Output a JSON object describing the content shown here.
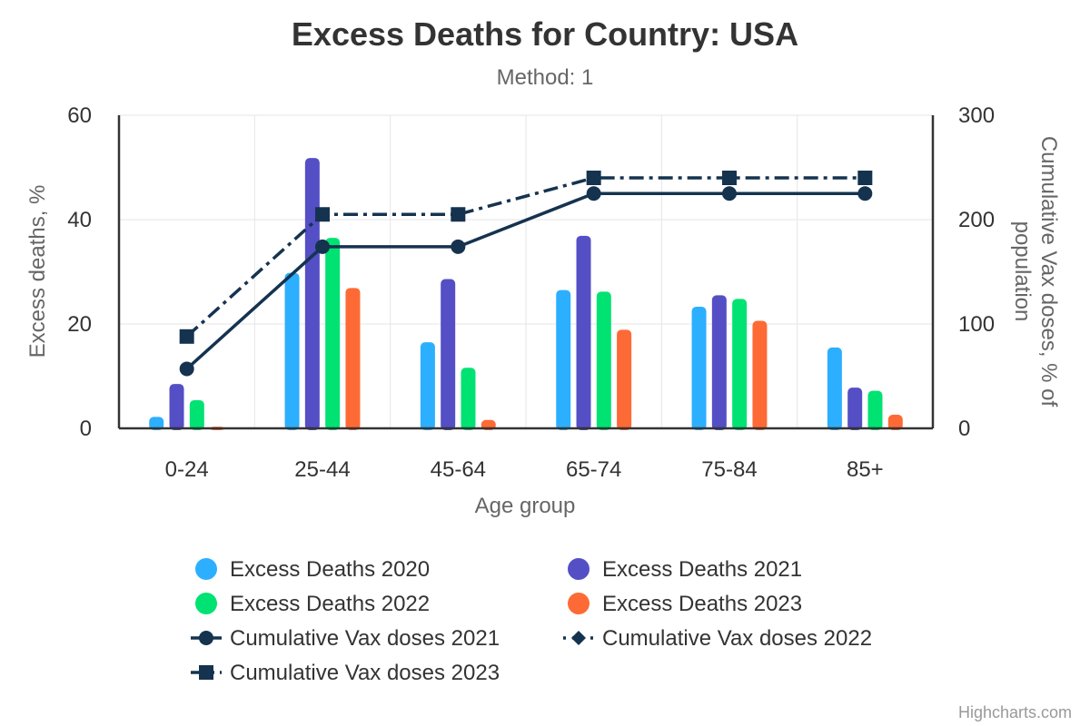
{
  "chart_data": {
    "type": "bar",
    "title": "Excess Deaths for Country: USA",
    "subtitle": "Method: 1",
    "xlabel": "Age group",
    "ylabel": "Excess deaths, %",
    "y2label_line1": "Cumulative Vax doses, % of",
    "y2label_line2": "population",
    "ylim": [
      0,
      60
    ],
    "y2lim": [
      0,
      300
    ],
    "yticks": [
      0,
      20,
      40,
      60
    ],
    "y2ticks": [
      0,
      100,
      200,
      300
    ],
    "categories": [
      "0-24",
      "25-44",
      "45-64",
      "65-74",
      "75-84",
      "85+"
    ],
    "bar_series": [
      {
        "name": "Excess Deaths 2020",
        "color": "#2caffe",
        "values": [
          2.2,
          29.8,
          16.5,
          26.5,
          23.3,
          15.5
        ]
      },
      {
        "name": "Excess Deaths 2021",
        "color": "#544fc5",
        "values": [
          8.5,
          51.8,
          28.6,
          36.9,
          25.5,
          7.8
        ]
      },
      {
        "name": "Excess Deaths 2022",
        "color": "#00e272",
        "values": [
          5.4,
          36.5,
          11.6,
          26.2,
          24.8,
          7.2
        ]
      },
      {
        "name": "Excess Deaths 2023",
        "color": "#fe6a35",
        "values": [
          0.3,
          26.9,
          1.6,
          18.9,
          20.6,
          2.6
        ]
      }
    ],
    "line_series": [
      {
        "name": "Cumulative Vax doses 2021",
        "color": "#15334f",
        "dash": "solid",
        "marker": "circle",
        "visible": true,
        "values": [
          57,
          174,
          174,
          225,
          225,
          225
        ]
      },
      {
        "name": "Cumulative Vax doses 2022",
        "color": "#15334f",
        "dash": "dot",
        "marker": "diamond",
        "visible": false,
        "values": [
          88,
          205,
          205,
          240,
          240,
          240
        ]
      },
      {
        "name": "Cumulative Vax doses 2023",
        "color": "#15334f",
        "dash": "dashdot",
        "marker": "square",
        "visible": true,
        "values": [
          88,
          205,
          205,
          240,
          240,
          240
        ]
      }
    ],
    "credits": "Highcharts.com"
  }
}
